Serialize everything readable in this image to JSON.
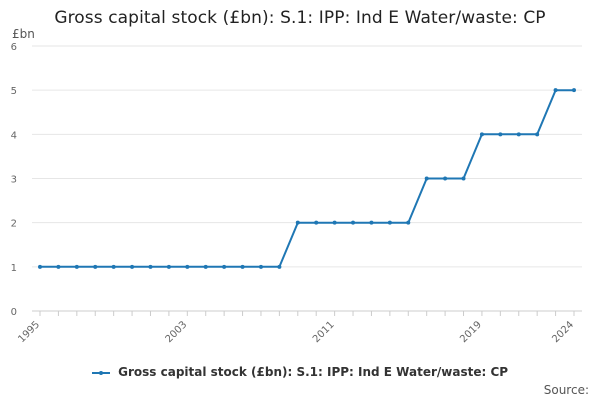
{
  "chart_data": {
    "type": "line",
    "title": "Gross capital stock (£bn): S.1: IPP: Ind E Water/waste: CP",
    "ylabel": "£bn",
    "xlabel": "",
    "x_ticks": [
      "1995",
      "2003",
      "2011",
      "2019",
      "2024"
    ],
    "y_ticks": [
      0,
      1,
      2,
      3,
      4,
      5,
      6
    ],
    "xlim": [
      1995,
      2024
    ],
    "ylim": [
      0,
      6
    ],
    "grid": true,
    "legend_position": "bottom",
    "series": [
      {
        "name": "Gross capital stock (£bn): S.1: IPP: Ind E Water/waste: CP",
        "color": "#1f77b4",
        "x": [
          1995,
          1996,
          1997,
          1998,
          1999,
          2000,
          2001,
          2002,
          2003,
          2004,
          2005,
          2006,
          2007,
          2008,
          2009,
          2010,
          2011,
          2012,
          2013,
          2014,
          2015,
          2016,
          2017,
          2018,
          2019,
          2020,
          2021,
          2022,
          2023,
          2024
        ],
        "values": [
          1,
          1,
          1,
          1,
          1,
          1,
          1,
          1,
          1,
          1,
          1,
          1,
          1,
          1,
          2,
          2,
          2,
          2,
          2,
          2,
          2,
          3,
          3,
          3,
          4,
          4,
          4,
          4,
          5,
          5
        ]
      }
    ]
  },
  "source_label": "Source:"
}
